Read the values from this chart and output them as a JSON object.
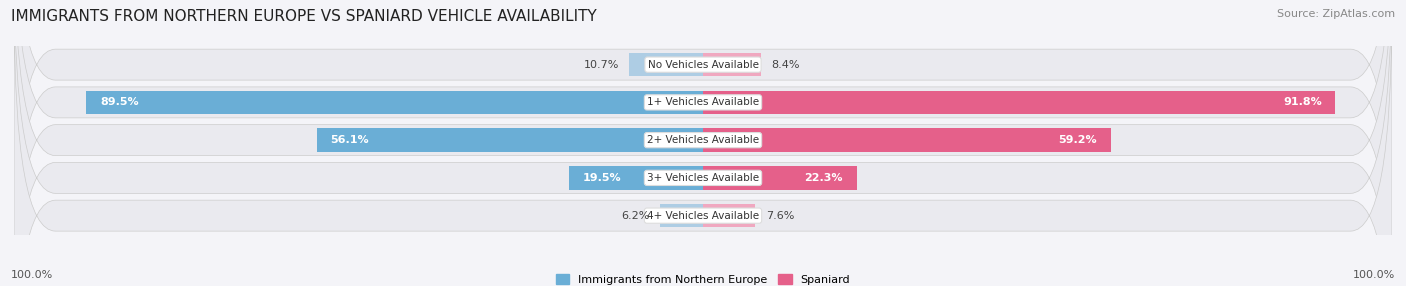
{
  "title": "IMMIGRANTS FROM NORTHERN EUROPE VS SPANIARD VEHICLE AVAILABILITY",
  "source": "Source: ZipAtlas.com",
  "categories": [
    "No Vehicles Available",
    "1+ Vehicles Available",
    "2+ Vehicles Available",
    "3+ Vehicles Available",
    "4+ Vehicles Available"
  ],
  "left_values": [
    10.7,
    89.5,
    56.1,
    19.5,
    6.2
  ],
  "right_values": [
    8.4,
    91.8,
    59.2,
    22.3,
    7.6
  ],
  "left_color_strong": "#6aaed6",
  "left_color_light": "#aecde4",
  "right_color_strong": "#e5608a",
  "right_color_light": "#f0a8c0",
  "left_label": "Immigrants from Northern Europe",
  "right_label": "Spaniard",
  "bg_row_color": "#e8e8ee",
  "fig_bg": "#f4f4f8",
  "axis_label_left": "100.0%",
  "axis_label_right": "100.0%",
  "title_fontsize": 11,
  "source_fontsize": 8,
  "bar_label_fontsize": 8,
  "category_fontsize": 7.5,
  "legend_fontsize": 8,
  "max_val": 100,
  "threshold_white_label": 12
}
